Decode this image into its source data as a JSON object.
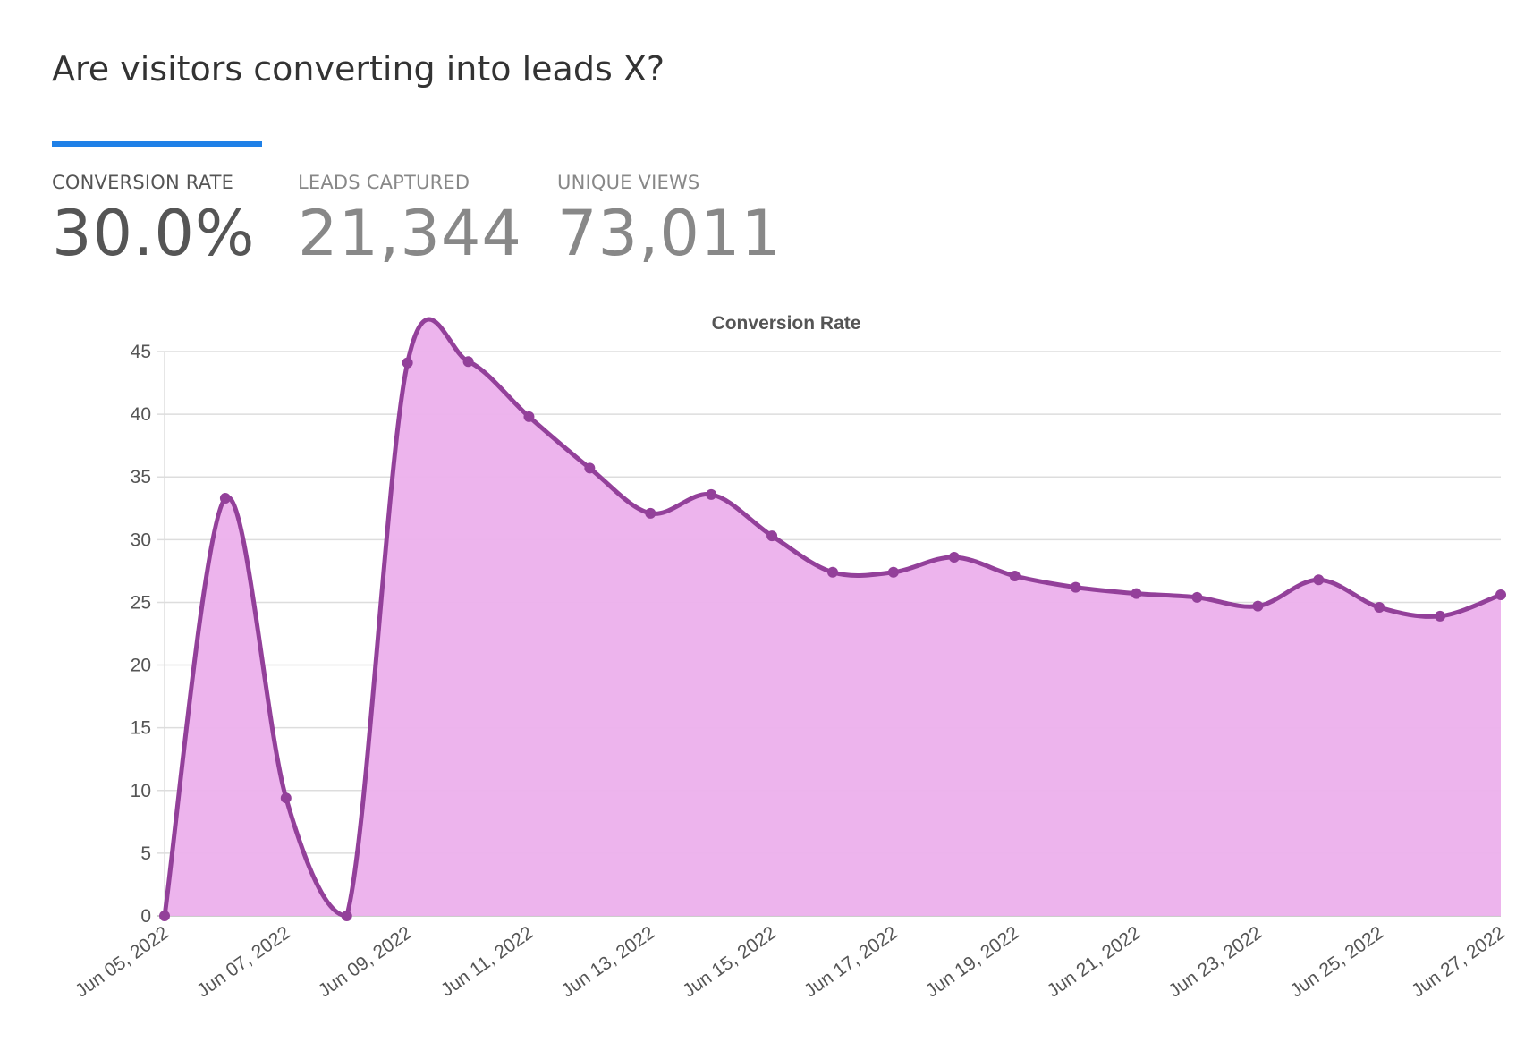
{
  "page": {
    "title": "Are visitors converting into leads X?"
  },
  "metrics": [
    {
      "label": "CONVERSION RATE",
      "value": "30.0%",
      "active": true
    },
    {
      "label": "LEADS CAPTURED",
      "value": "21,344",
      "active": false
    },
    {
      "label": "UNIQUE VIEWS",
      "value": "73,011",
      "active": false
    }
  ],
  "colors": {
    "accent": "#1f80e7",
    "line": "#93409a",
    "fill": "#ecb0ec",
    "grid": "#dddddd",
    "text": "#555555"
  },
  "chart_data": {
    "type": "area",
    "title": "Conversion Rate",
    "xlabel": "",
    "ylabel": "",
    "ylim": [
      0,
      45
    ],
    "yticks": [
      0,
      5,
      10,
      15,
      20,
      25,
      30,
      35,
      40,
      45
    ],
    "grid": true,
    "smooth": true,
    "x": [
      "Jun 05, 2022",
      "Jun 06, 2022",
      "Jun 07, 2022",
      "Jun 08, 2022",
      "Jun 09, 2022",
      "Jun 10, 2022",
      "Jun 11, 2022",
      "Jun 12, 2022",
      "Jun 13, 2022",
      "Jun 14, 2022",
      "Jun 15, 2022",
      "Jun 16, 2022",
      "Jun 17, 2022",
      "Jun 18, 2022",
      "Jun 19, 2022",
      "Jun 20, 2022",
      "Jun 21, 2022",
      "Jun 22, 2022",
      "Jun 23, 2022",
      "Jun 24, 2022",
      "Jun 25, 2022",
      "Jun 26, 2022",
      "Jun 27, 2022"
    ],
    "xtick_labels": [
      "Jun 05, 2022",
      "Jun 07, 2022",
      "Jun 09, 2022",
      "Jun 11, 2022",
      "Jun 13, 2022",
      "Jun 15, 2022",
      "Jun 17, 2022",
      "Jun 19, 2022",
      "Jun 21, 2022",
      "Jun 23, 2022",
      "Jun 25, 2022",
      "Jun 27, 2022"
    ],
    "series": [
      {
        "name": "Conversion Rate",
        "values": [
          0,
          33.3,
          9.4,
          0,
          44.1,
          44.2,
          39.8,
          35.7,
          32.1,
          33.6,
          30.3,
          27.4,
          27.4,
          28.6,
          27.1,
          26.2,
          25.7,
          25.4,
          24.7,
          26.8,
          24.6,
          23.9,
          25.6
        ]
      }
    ]
  }
}
